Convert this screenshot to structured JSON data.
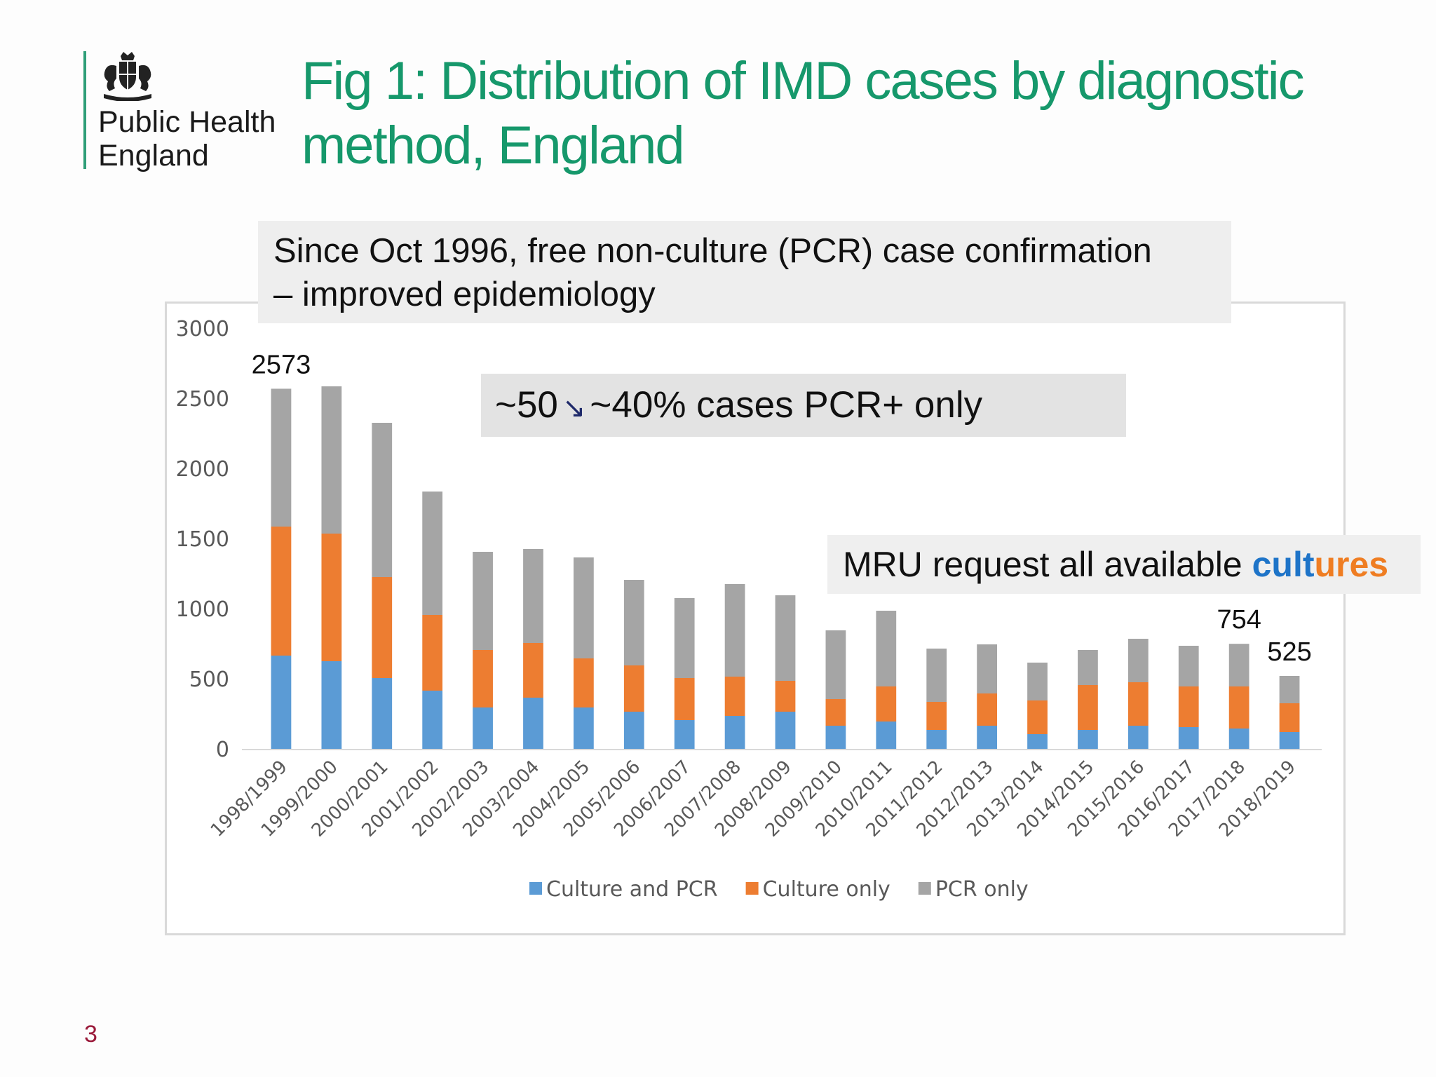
{
  "header": {
    "org_line1": "Public Health",
    "org_line2": "England",
    "title_line1": "Fig 1: Distribution of IMD cases by diagnostic",
    "title_line2": "method, England",
    "crest_icon": "royal-coat-of-arms-icon"
  },
  "annotations": {
    "pcr_line1": "Since Oct 1996, free non-culture (PCR) case confirmation",
    "pcr_line2": "– improved epidemiology",
    "pct_from": "~50",
    "pct_arrow": "↘",
    "pct_to": "~40% cases PCR+ only",
    "mru_prefix": "MRU request all available ",
    "mru_word_part1": "cult",
    "mru_word_part2": "ures"
  },
  "footer": {
    "page_number": "3"
  },
  "colors": {
    "title": "#16986b",
    "culture_and_pcr": "#5b9bd5",
    "culture_only": "#ed7d31",
    "pcr_only": "#a5a5a5",
    "page_number": "#9b1b3b"
  },
  "chart_data": {
    "type": "bar",
    "stacked": true,
    "title": "",
    "xlabel": "",
    "ylabel": "",
    "ylim": [
      0,
      3000
    ],
    "yticks": [
      0,
      500,
      1000,
      1500,
      2000,
      2500,
      3000
    ],
    "grid": false,
    "legend_position": "bottom",
    "categories": [
      "1998/1999",
      "1999/2000",
      "2000/2001",
      "2001/2002",
      "2002/2003",
      "2003/2004",
      "2004/2005",
      "2005/2006",
      "2006/2007",
      "2007/2008",
      "2008/2009",
      "2009/2010",
      "2010/2011",
      "2011/2012",
      "2012/2013",
      "2013/2014",
      "2014/2015",
      "2015/2016",
      "2016/2017",
      "2017/2018",
      "2018/2019"
    ],
    "series": [
      {
        "name": "Culture and PCR",
        "color": "#5b9bd5",
        "values": [
          670,
          630,
          510,
          420,
          300,
          370,
          300,
          270,
          210,
          240,
          270,
          170,
          200,
          140,
          170,
          110,
          140,
          170,
          160,
          150,
          125
        ]
      },
      {
        "name": "Culture only",
        "color": "#ed7d31",
        "values": [
          920,
          910,
          720,
          540,
          410,
          390,
          350,
          330,
          300,
          280,
          220,
          190,
          250,
          200,
          230,
          240,
          320,
          310,
          290,
          300,
          205
        ]
      },
      {
        "name": "PCR only",
        "color": "#a5a5a5",
        "values": [
          983,
          1050,
          1100,
          880,
          700,
          670,
          720,
          610,
          570,
          660,
          610,
          490,
          540,
          380,
          350,
          270,
          250,
          310,
          290,
          304,
          195
        ]
      }
    ],
    "data_labels": [
      {
        "category": "1998/1999",
        "text": "2573"
      },
      {
        "category": "2017/2018",
        "text": "754"
      },
      {
        "category": "2018/2019",
        "text": "525"
      }
    ]
  }
}
